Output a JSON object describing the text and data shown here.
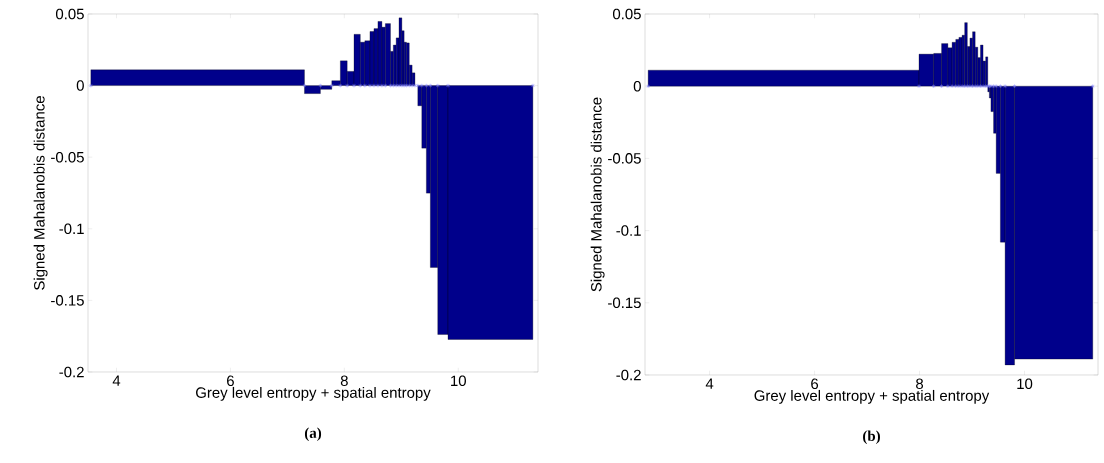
{
  "chart_data": [
    {
      "type": "histogram",
      "xlabel": "Grey level entropy + spatial entropy",
      "ylabel": "Signed Mahalanobis distance",
      "annotations": [
        "(a)"
      ],
      "color": "#00008b",
      "bins": [
        3.55,
        7.3,
        7.58,
        7.78,
        7.93,
        8.05,
        8.17,
        8.28,
        8.36,
        8.45,
        8.52,
        8.59,
        8.66,
        8.72,
        8.81,
        8.86,
        8.91,
        8.96,
        9.01,
        9.05,
        9.09,
        9.14,
        9.19,
        9.24,
        9.29,
        9.36,
        9.44,
        9.51,
        9.64,
        9.82,
        11.31
      ],
      "values": [
        0.011,
        -0.0056,
        -0.0026,
        0.0034,
        0.0173,
        0.0099,
        0.0358,
        0.0303,
        0.0313,
        0.0378,
        0.0398,
        0.0448,
        0.0408,
        0.0433,
        0.0239,
        0.0283,
        0.0333,
        0.0473,
        0.0383,
        0.0303,
        0.0298,
        0.0143,
        0.0089,
        null,
        -0.0141,
        -0.0437,
        -0.0751,
        -0.127,
        -0.1738,
        -0.1773
      ],
      "series": [
        {
          "type": "scatter",
          "color": "#8080ff",
          "x": [
            3.55,
            7.3,
            7.58,
            7.78,
            7.93,
            8.05,
            8.17,
            8.28,
            8.36,
            8.45,
            8.52,
            8.59,
            8.66,
            8.72,
            8.81,
            8.86,
            8.91,
            8.96,
            9.01,
            9.05,
            9.09,
            9.14,
            9.19,
            9.24,
            9.29,
            9.36,
            9.44,
            9.51,
            9.64,
            9.82,
            11.31
          ],
          "values": [
            0,
            0,
            0,
            0,
            0,
            0,
            0,
            0,
            0,
            0,
            0,
            0,
            0,
            0,
            0,
            0,
            0,
            0,
            0,
            0,
            0,
            0,
            0,
            0,
            0,
            0,
            0,
            0,
            0,
            0,
            0
          ]
        }
      ],
      "marker": "cross",
      "xlim": [
        3.5,
        11.4
      ],
      "ylim": [
        -0.2,
        0.05
      ],
      "xticks": [
        4,
        6,
        8,
        10
      ],
      "yticks": [
        -0.2,
        -0.15,
        -0.1,
        -0.05,
        0,
        0.05
      ]
    },
    {
      "type": "histogram",
      "xlabel": "Grey level entropy + spatial entropy",
      "ylabel": "Signed Mahalanobis distance",
      "annotations": [
        "(b)"
      ],
      "color": "#00008b",
      "bins": [
        2.83,
        7.99,
        8.27,
        8.42,
        8.54,
        8.62,
        8.69,
        8.75,
        8.81,
        8.86,
        8.91,
        8.96,
        9.01,
        9.06,
        9.11,
        9.16,
        9.21,
        9.26,
        9.3,
        9.33,
        9.36,
        9.41,
        9.46,
        9.54,
        9.63,
        9.81,
        11.3
      ],
      "values": [
        0.0111,
        0.0222,
        0.0227,
        0.0295,
        0.0266,
        0.0304,
        0.0324,
        0.0338,
        0.0353,
        0.044,
        0.0275,
        0.0333,
        0.0377,
        0.027,
        0.0198,
        0.0285,
        0.0174,
        0.0203,
        -0.0039,
        -0.0082,
        -0.0176,
        -0.0326,
        -0.0604,
        -0.108,
        -0.193,
        -0.189
      ],
      "series": [
        {
          "type": "scatter",
          "color": "#8080ff",
          "x": [
            2.83,
            7.99,
            8.27,
            8.42,
            8.54,
            8.62,
            8.69,
            8.75,
            8.81,
            8.86,
            8.91,
            8.96,
            9.01,
            9.06,
            9.11,
            9.16,
            9.21,
            9.26,
            9.3,
            9.33,
            9.36,
            9.41,
            9.46,
            9.54,
            9.63,
            9.81,
            11.3
          ],
          "values": [
            0,
            0,
            0,
            0,
            0,
            0,
            0,
            0,
            0,
            0,
            0,
            0,
            0,
            0,
            0,
            0,
            0,
            0,
            0,
            0,
            0,
            0,
            0,
            0,
            0,
            0,
            0
          ]
        }
      ],
      "marker": "cross",
      "xlim": [
        2.77,
        11.4
      ],
      "ylim": [
        -0.2,
        0.05
      ],
      "xticks": [
        4,
        6,
        8,
        10
      ],
      "yticks": [
        -0.2,
        -0.15,
        -0.1,
        -0.05,
        0,
        0.05
      ]
    }
  ]
}
